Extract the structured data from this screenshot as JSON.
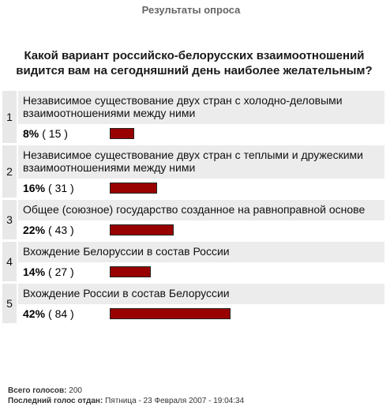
{
  "header": {
    "title": "Результаты опроса"
  },
  "poll": {
    "question": "Какой вариант российско-белорусских взаимоотношений видится вам на сегодняшний день наиболее желательным?",
    "options": [
      {
        "num": "1",
        "label": "Независимое существование двух стран с холодно-деловыми взаимоотношениями между ними",
        "percent_text": "8%",
        "count_text": "( 15 )",
        "fraction": 0.08
      },
      {
        "num": "2",
        "label": "Независимое существование двух стран с теплыми и дружескими взаимоотношениями между ними",
        "percent_text": "16%",
        "count_text": "( 31 )",
        "fraction": 0.16
      },
      {
        "num": "3",
        "label": "Общее (союзное) государство созданное на равноправной основе",
        "percent_text": "22%",
        "count_text": "( 43 )",
        "fraction": 0.22
      },
      {
        "num": "4",
        "label": "Вхождение Белоруссии в состав России",
        "percent_text": "14%",
        "count_text": "( 27 )",
        "fraction": 0.14
      },
      {
        "num": "5",
        "label": "Вхождение России в состав Белоруссии",
        "percent_text": "42%",
        "count_text": "( 84 )",
        "fraction": 0.42
      }
    ]
  },
  "footer": {
    "total_label": "Всего голосов:",
    "total_value": "200",
    "last_vote_label": "Последний голос отдан:",
    "last_vote_value": "Пятница - 23 Февраля 2007 - 19:04:34"
  },
  "colors": {
    "bar": "#990000",
    "row_bg": "#ececec"
  }
}
